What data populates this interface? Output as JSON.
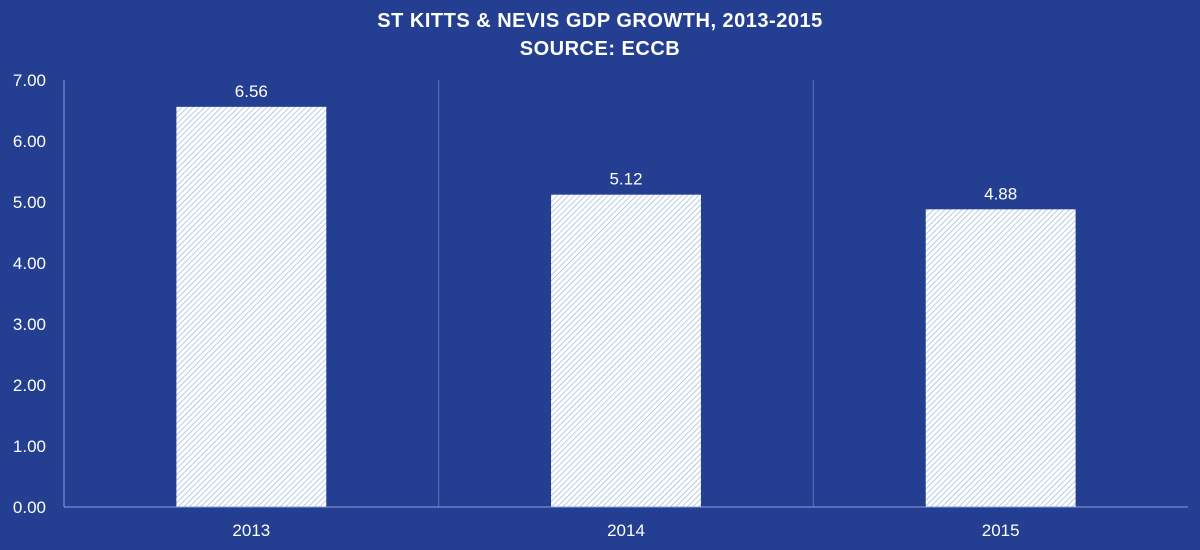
{
  "chart_data": {
    "type": "bar",
    "title": "ST KITTS & NEVIS GDP GROWTH, 2013-2015",
    "subtitle": "SOURCE: ECCB",
    "categories": [
      "2013",
      "2014",
      "2015"
    ],
    "values": [
      6.56,
      5.12,
      4.88
    ],
    "data_labels": [
      "6.56",
      "5.12",
      "4.88"
    ],
    "y_ticks": [
      "0.00",
      "1.00",
      "2.00",
      "3.00",
      "4.00",
      "5.00",
      "6.00",
      "7.00"
    ],
    "ylim": [
      0,
      7
    ],
    "xlabel": "",
    "ylabel": "",
    "grid": "vertical separators",
    "legend": "none",
    "colors": {
      "background": "#243f92",
      "bar_fill": "#ffffff",
      "bar_hatch": "#9bb4de",
      "text": "#ffffff",
      "grid": "#5a72b8",
      "axis": "#8d9fd6"
    }
  }
}
